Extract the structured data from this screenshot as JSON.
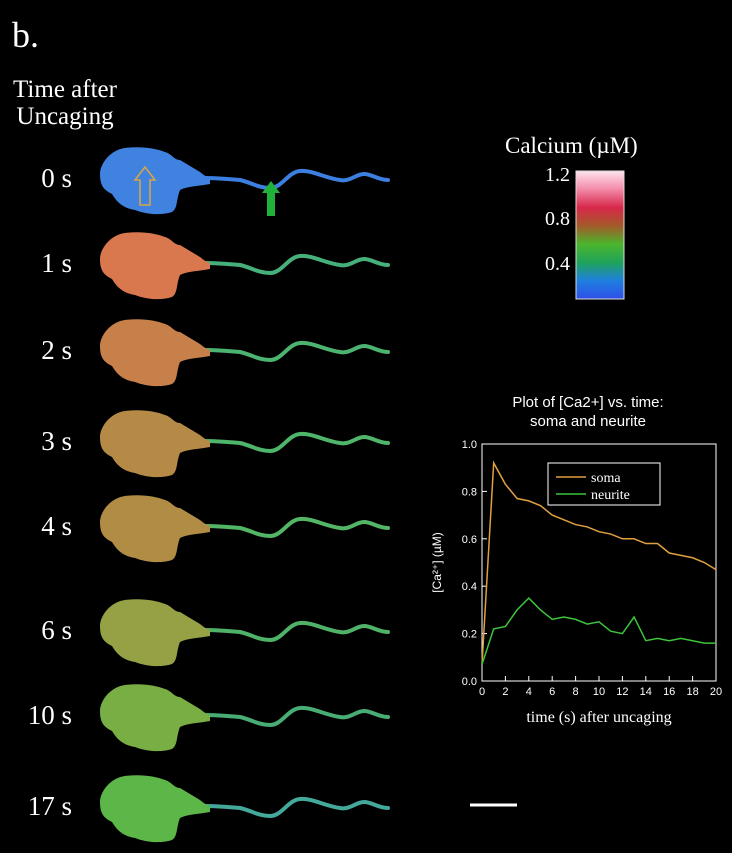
{
  "panel_label": "b.",
  "time_header": [
    "Time after",
    "Uncaging"
  ],
  "frames": [
    {
      "time_label": "0 s",
      "soma_color": "#3f82e0",
      "neurite_color": "#3d7fe0"
    },
    {
      "time_label": "1 s",
      "soma_color": "#d9784f",
      "neurite_color": "#46b07a"
    },
    {
      "time_label": "2 s",
      "soma_color": "#c8804a",
      "neurite_color": "#4cb370"
    },
    {
      "time_label": "3 s",
      "soma_color": "#b58a46",
      "neurite_color": "#4fb56a"
    },
    {
      "time_label": "4 s",
      "soma_color": "#b08c45",
      "neurite_color": "#53b566"
    },
    {
      "time_label": "6 s",
      "soma_color": "#96a044",
      "neurite_color": "#4fb268"
    },
    {
      "time_label": "10 s",
      "soma_color": "#78ae43",
      "neurite_color": "#48ad75"
    },
    {
      "time_label": "17 s",
      "soma_color": "#5cb648",
      "neurite_color": "#44a89a"
    }
  ],
  "arrows": {
    "soma_arrow_color": "#d6a447",
    "neurite_arrow_color": "#1fb13a"
  },
  "colorbar": {
    "title": "Calcium (µM)",
    "ticks": [
      "1.2",
      "0.8",
      "0.4"
    ],
    "colors": [
      "#ffe4ee",
      "#f28aa8",
      "#d8284a",
      "#a35a2a",
      "#4bb52c",
      "#1fa35a",
      "#1f7fe0",
      "#2f4fe8"
    ]
  },
  "chart_data": {
    "type": "line",
    "title": [
      "Plot of [Ca2+] vs. time:",
      "soma and neurite"
    ],
    "xlabel": "time (s) after uncaging",
    "ylabel": "[Ca²⁺] (µM)",
    "xlim": [
      0,
      20
    ],
    "ylim": [
      0.0,
      1.0
    ],
    "x_ticks": [
      "0",
      "2",
      "4",
      "6",
      "8",
      "10",
      "12",
      "14",
      "16",
      "18",
      "20"
    ],
    "y_ticks": [
      "0.0",
      "0.2",
      "0.4",
      "0.6",
      "0.8",
      "1.0"
    ],
    "legend_position": "top-right",
    "series": [
      {
        "name": "soma",
        "color": "#e0a040",
        "x": [
          0,
          1,
          2,
          3,
          4,
          5,
          6,
          7,
          8,
          9,
          10,
          11,
          12,
          13,
          14,
          15,
          16,
          17,
          18,
          19,
          20
        ],
        "y": [
          0.07,
          0.92,
          0.83,
          0.77,
          0.76,
          0.74,
          0.7,
          0.68,
          0.66,
          0.65,
          0.63,
          0.62,
          0.6,
          0.6,
          0.58,
          0.58,
          0.54,
          0.53,
          0.52,
          0.5,
          0.47
        ]
      },
      {
        "name": "neurite",
        "color": "#3cc43c",
        "x": [
          0,
          1,
          2,
          3,
          4,
          5,
          6,
          7,
          8,
          9,
          10,
          11,
          12,
          13,
          14,
          15,
          16,
          17,
          18,
          19,
          20
        ],
        "y": [
          0.07,
          0.22,
          0.23,
          0.3,
          0.35,
          0.3,
          0.26,
          0.27,
          0.26,
          0.24,
          0.25,
          0.21,
          0.2,
          0.27,
          0.17,
          0.18,
          0.17,
          0.18,
          0.17,
          0.16,
          0.16
        ]
      }
    ]
  }
}
